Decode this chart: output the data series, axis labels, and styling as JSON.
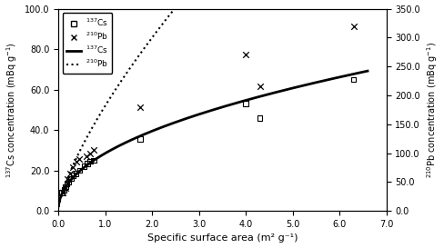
{
  "cs_scatter_x": [
    0.08,
    0.12,
    0.15,
    0.18,
    0.22,
    0.27,
    0.32,
    0.38,
    0.45,
    0.55,
    0.62,
    0.68,
    0.75,
    1.75,
    4.0,
    4.3,
    6.3
  ],
  "cs_scatter_y": [
    9.0,
    10.5,
    12.0,
    13.5,
    14.5,
    16.0,
    17.5,
    18.5,
    20.0,
    22.0,
    23.5,
    24.5,
    25.0,
    35.5,
    53.0,
    46.0,
    65.0
  ],
  "pb_scatter_x": [
    0.1,
    0.15,
    0.2,
    0.25,
    0.3,
    0.38,
    0.45,
    0.6,
    0.68,
    0.75,
    1.75,
    4.0,
    4.3,
    6.3
  ],
  "pb_scatter_y_right": [
    32.0,
    40.0,
    55.0,
    65.0,
    75.0,
    85.0,
    90.0,
    95.0,
    100.0,
    105.0,
    180.0,
    270.0,
    215.0,
    320.0
  ],
  "cs_curve_a": 28.5,
  "cs_curve_b": 0.47,
  "pb_curve_a": 52.0,
  "pb_curve_b": 0.72,
  "xlim": [
    0.0,
    7.0
  ],
  "ylim_left": [
    0.0,
    100.0
  ],
  "ylim_right": [
    0.0,
    350.0
  ],
  "xlabel": "Specific surface area (m² g⁻¹)",
  "ylabel_left": "$^{137}$Cs concentration (mBq g$^{-1}$)",
  "ylabel_right": "$^{210}$Pb concentration (mBq g$^{-1}$)",
  "legend_labels": [
    "$^{137}$Cs",
    "$^{210}$Pb",
    "$^{137}$Cs",
    "$^{210}$Pb"
  ],
  "xticks": [
    0.0,
    1.0,
    2.0,
    3.0,
    4.0,
    5.0,
    6.0,
    7.0
  ],
  "yticks_left": [
    0.0,
    20.0,
    40.0,
    60.0,
    80.0,
    100.0
  ],
  "yticks_right": [
    0.0,
    50.0,
    100.0,
    150.0,
    200.0,
    250.0,
    300.0,
    350.0
  ],
  "background_color": "#ffffff",
  "line_color": "#000000"
}
